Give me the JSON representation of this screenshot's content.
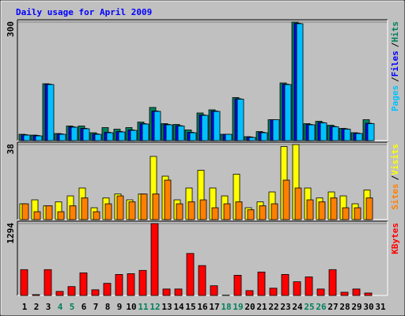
{
  "chart_data": [
    {
      "type": "bar",
      "title": "Daily usage for April 2009",
      "ylim": [
        0,
        300
      ],
      "yticks": [
        300
      ],
      "legend_separator": "/",
      "series": [
        {
          "name": "Hits",
          "color": "#00805C",
          "values": [
            16,
            14,
            144,
            18,
            37,
            37,
            20,
            33,
            29,
            33,
            47,
            84,
            43,
            41,
            27,
            70,
            78,
            16,
            109,
            10,
            23,
            53,
            146,
            300,
            43,
            49,
            39,
            31,
            20,
            53,
            null
          ]
        },
        {
          "name": "Files",
          "color": "#0000FF",
          "values": [
            15,
            13,
            143,
            17,
            35,
            31,
            17,
            21,
            23,
            27,
            43,
            75,
            41,
            38,
            21,
            65,
            75,
            16,
            106,
            9,
            21,
            53,
            143,
            297,
            41,
            46,
            36,
            30,
            19,
            44,
            null
          ]
        },
        {
          "name": "Pages",
          "color": "#00C0FF",
          "values": [
            14,
            12,
            142,
            16,
            34,
            30,
            16,
            20,
            22,
            26,
            42,
            74,
            40,
            37,
            20,
            64,
            74,
            16,
            105,
            8,
            20,
            53,
            142,
            296,
            40,
            45,
            35,
            29,
            18,
            43,
            null
          ]
        }
      ]
    },
    {
      "type": "bar",
      "ylim": [
        0,
        38
      ],
      "yticks": [
        38
      ],
      "legend_separator": "/",
      "series": [
        {
          "name": "Visits",
          "color": "#FFFF00",
          "values": [
            8,
            10,
            7,
            9,
            12,
            16,
            6,
            11,
            13,
            10,
            13,
            32,
            22,
            10,
            16,
            25,
            16,
            12,
            23,
            6,
            9,
            14,
            37,
            38,
            16,
            11,
            14,
            12,
            8,
            15,
            null
          ]
        },
        {
          "name": "Sites",
          "color": "#FF8000",
          "values": [
            8,
            4,
            7,
            4,
            7,
            11,
            4,
            8,
            12,
            9,
            13,
            13,
            20,
            8,
            9,
            10,
            6,
            8,
            9,
            5,
            7,
            8,
            20,
            16,
            10,
            9,
            11,
            6,
            6,
            11,
            null
          ]
        }
      ]
    },
    {
      "type": "bar",
      "ylim": [
        0,
        1294
      ],
      "yticks": [
        1294
      ],
      "categories": [
        1,
        2,
        3,
        4,
        5,
        6,
        7,
        8,
        9,
        10,
        11,
        12,
        13,
        14,
        15,
        16,
        17,
        18,
        19,
        20,
        21,
        22,
        23,
        24,
        25,
        26,
        27,
        28,
        29,
        30,
        31
      ],
      "highlight_categories": [
        4,
        5,
        11,
        12,
        18,
        19,
        25,
        26
      ],
      "highlight_color": "#00805C",
      "series": [
        {
          "name": "KBytes",
          "color": "#FF0000",
          "values": [
            465,
            15,
            465,
            73,
            160,
            407,
            102,
            218,
            378,
            392,
            451,
            1294,
            116,
            116,
            756,
            538,
            175,
            5,
            363,
            87,
            422,
            131,
            378,
            247,
            334,
            116,
            465,
            58,
            116,
            44,
            null
          ]
        }
      ]
    }
  ]
}
